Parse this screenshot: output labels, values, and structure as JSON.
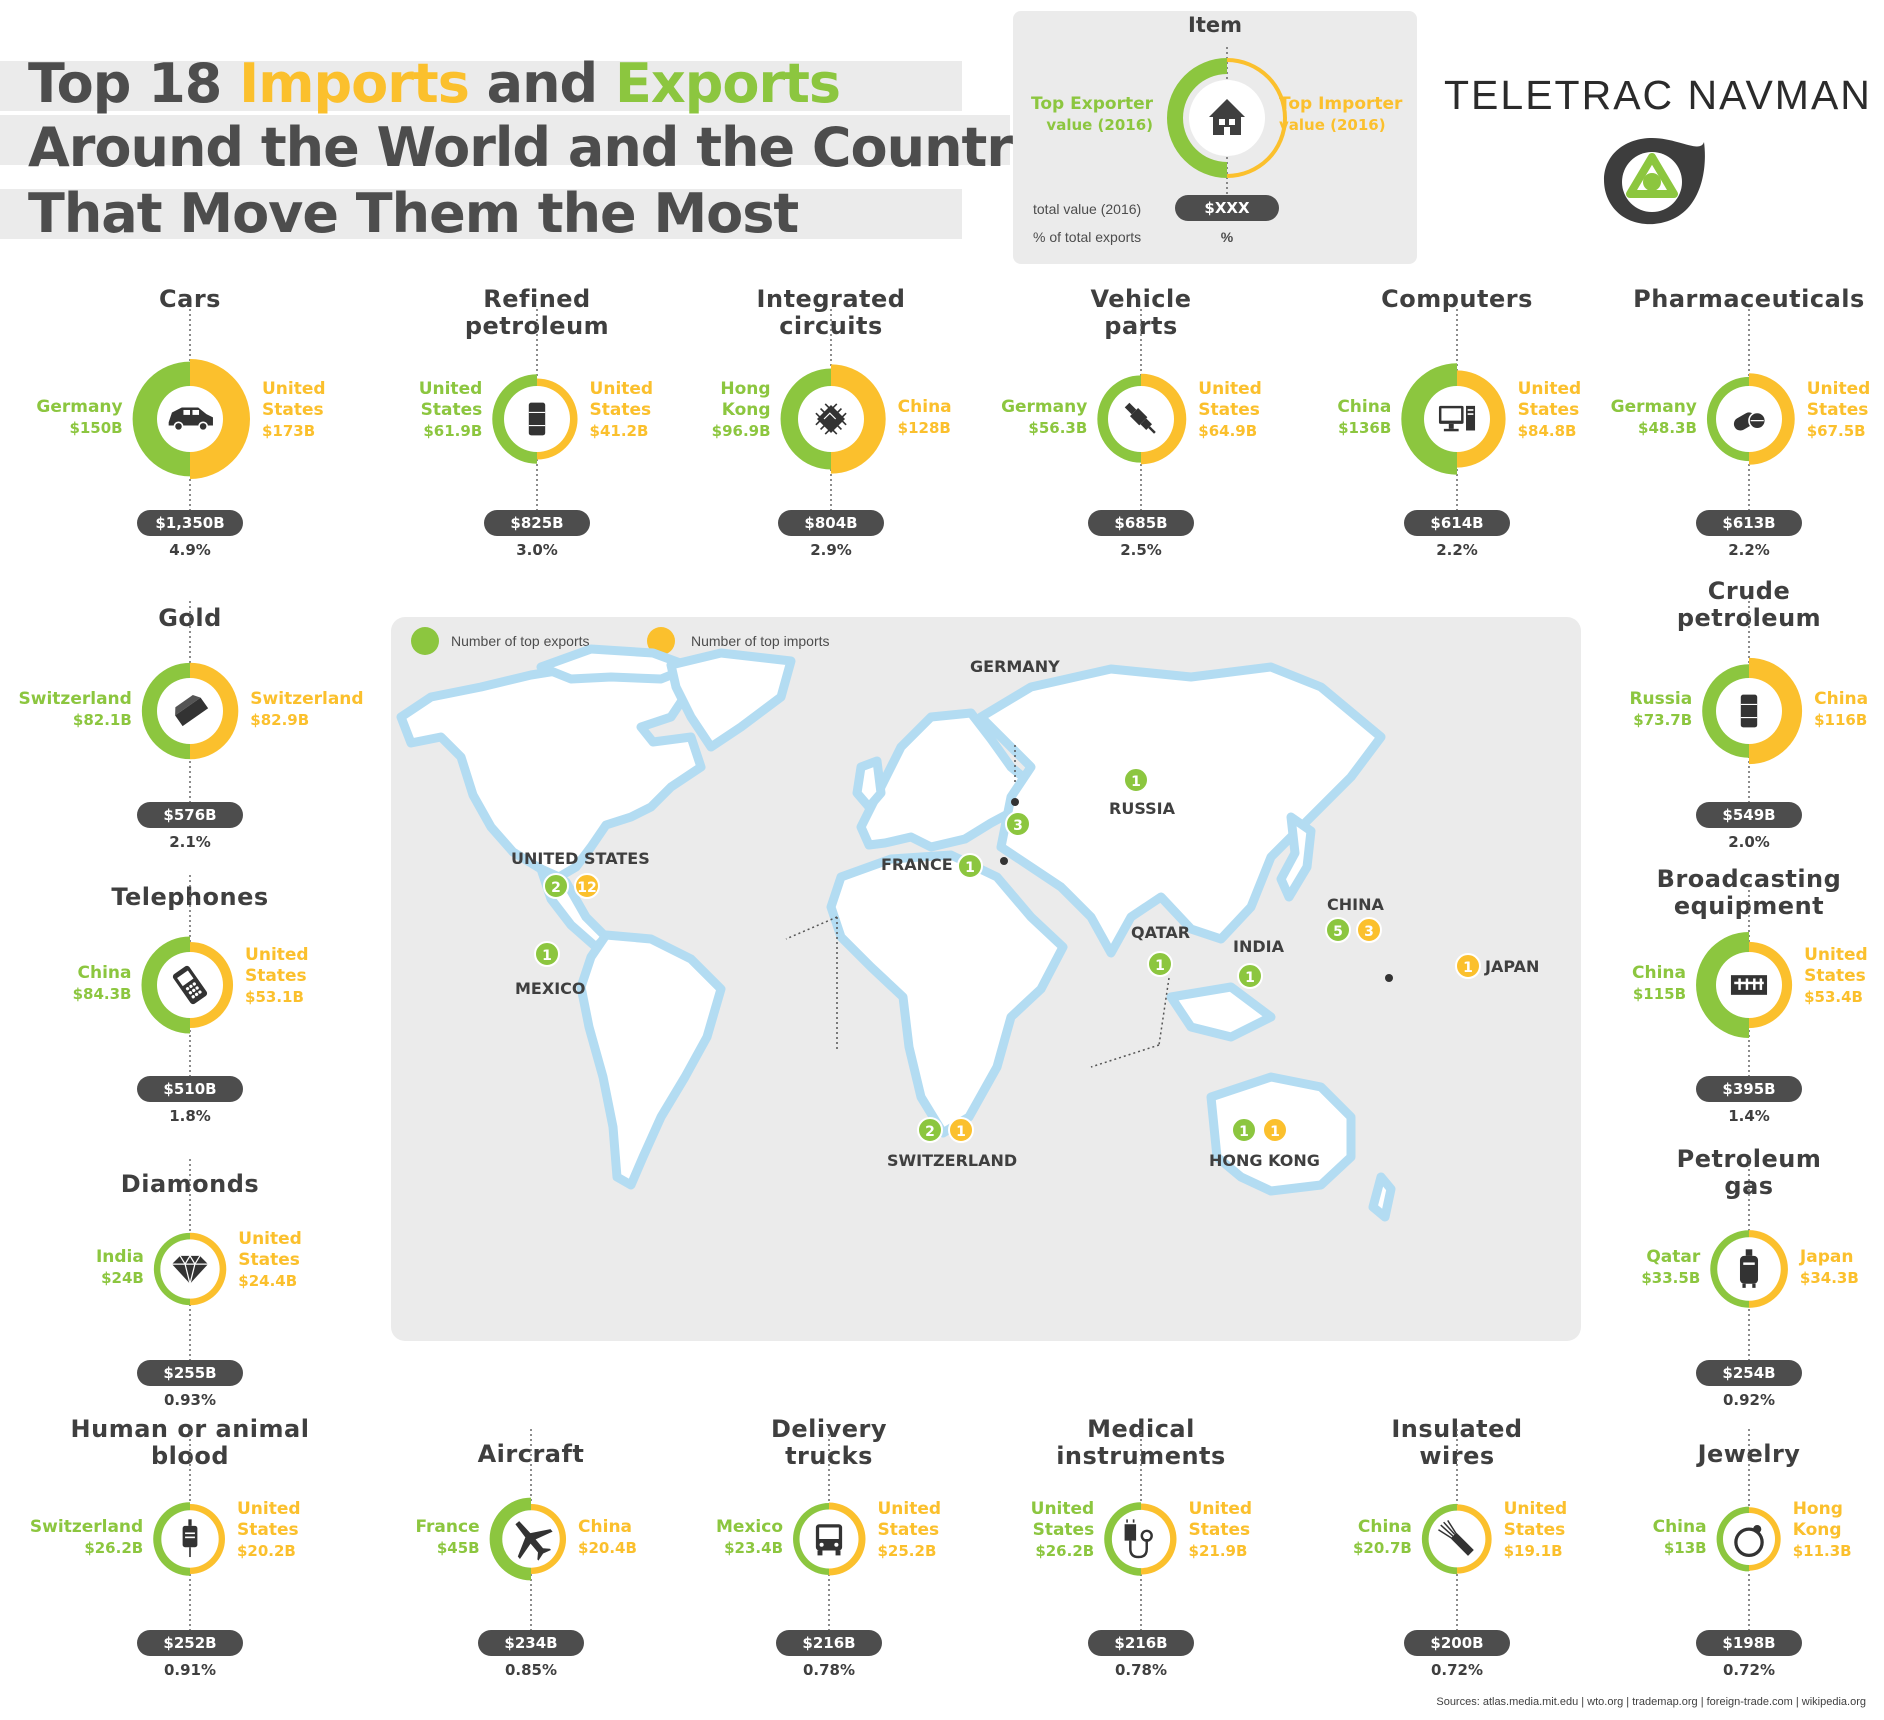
{
  "title": {
    "line1_a": "Top 18 ",
    "line1_imports": "Imports",
    "line1_and": " and ",
    "line1_exports": "Exports",
    "line2": "Around the World and the Countries",
    "line3": "That Move Them the Most"
  },
  "legend": {
    "item": "Item",
    "top_exporter_1": "Top Exporter",
    "top_exporter_2": "value (2016)",
    "top_importer_1": "Top Importer",
    "top_importer_2": "value (2016)",
    "total_label": "total value (2016)",
    "total_value": "$XXX",
    "pct_label": "% of total exports",
    "pct_value": "%"
  },
  "brand": {
    "name": "TELETRAC NAVMAN",
    "logo_icon": "navman-logo-icon"
  },
  "colors": {
    "exporter": "#8cc63f",
    "importer": "#fbc02d",
    "pill": "#4d4d4d",
    "map_bg": "#ebebeb",
    "coast": "#b3dcf2"
  },
  "items": [
    {
      "name": "Cars",
      "exporter": "Germany",
      "export_value": "$150B",
      "importer": "United States",
      "import_value": "$173B",
      "total": "$1,350B",
      "pct": "4.9%",
      "export_b": 150,
      "import_b": 173,
      "icon": "car-icon"
    },
    {
      "name": "Refined petroleum",
      "exporter": "United States",
      "export_value": "$61.9B",
      "importer": "United States",
      "import_value": "$41.2B",
      "total": "$825B",
      "pct": "3.0%",
      "export_b": 61.9,
      "import_b": 41.2,
      "icon": "barrel-icon"
    },
    {
      "name": "Integrated circuits",
      "exporter": "Hong Kong",
      "export_value": "$96.9B",
      "importer": "China",
      "import_value": "$128B",
      "total": "$804B",
      "pct": "2.9%",
      "export_b": 96.9,
      "import_b": 128,
      "icon": "chip-icon"
    },
    {
      "name": "Vehicle parts",
      "exporter": "Germany",
      "export_value": "$56.3B",
      "importer": "United States",
      "import_value": "$64.9B",
      "total": "$685B",
      "pct": "2.5%",
      "export_b": 56.3,
      "import_b": 64.9,
      "icon": "spark-plug-icon"
    },
    {
      "name": "Computers",
      "exporter": "China",
      "export_value": "$136B",
      "importer": "United States",
      "import_value": "$84.8B",
      "total": "$614B",
      "pct": "2.2%",
      "export_b": 136,
      "import_b": 84.8,
      "icon": "computer-icon"
    },
    {
      "name": "Pharmaceuticals",
      "exporter": "Germany",
      "export_value": "$48.3B",
      "importer": "United States",
      "import_value": "$67.5B",
      "total": "$613B",
      "pct": "2.2%",
      "export_b": 48.3,
      "import_b": 67.5,
      "icon": "pills-icon"
    },
    {
      "name": "Gold",
      "exporter": "Switzerland",
      "export_value": "$82.1B",
      "importer": "Switzerland",
      "import_value": "$82.9B",
      "total": "$576B",
      "pct": "2.1%",
      "export_b": 82.1,
      "import_b": 82.9,
      "icon": "gold-bar-icon"
    },
    {
      "name": "Crude petroleum",
      "exporter": "Russia",
      "export_value": "$73.7B",
      "importer": "China",
      "import_value": "$116B",
      "total": "$549B",
      "pct": "2.0%",
      "export_b": 73.7,
      "import_b": 116,
      "icon": "barrel-icon"
    },
    {
      "name": "Telephones",
      "exporter": "China",
      "export_value": "$84.3B",
      "importer": "United States",
      "import_value": "$53.1B",
      "total": "$510B",
      "pct": "1.8%",
      "export_b": 84.3,
      "import_b": 53.1,
      "icon": "phone-icon"
    },
    {
      "name": "Broadcasting equipment",
      "exporter": "China",
      "export_value": "$115B",
      "importer": "United States",
      "import_value": "$53.4B",
      "total": "$395B",
      "pct": "1.4%",
      "export_b": 115,
      "import_b": 53.4,
      "icon": "mixer-icon"
    },
    {
      "name": "Diamonds",
      "exporter": "India",
      "export_value": "$24B",
      "importer": "United States",
      "import_value": "$24.4B",
      "total": "$255B",
      "pct": "0.93%",
      "export_b": 24,
      "import_b": 24.4,
      "icon": "diamond-icon"
    },
    {
      "name": "Petroleum gas",
      "exporter": "Qatar",
      "export_value": "$33.5B",
      "importer": "Japan",
      "import_value": "$34.3B",
      "total": "$254B",
      "pct": "0.92%",
      "export_b": 33.5,
      "import_b": 34.3,
      "icon": "gas-tank-icon"
    },
    {
      "name": "Human or animal blood",
      "exporter": "Switzerland",
      "export_value": "$26.2B",
      "importer": "United States",
      "import_value": "$20.2B",
      "total": "$252B",
      "pct": "0.91%",
      "export_b": 26.2,
      "import_b": 20.2,
      "icon": "blood-bag-icon"
    },
    {
      "name": "Aircraft",
      "exporter": "France",
      "export_value": "$45B",
      "importer": "China",
      "import_value": "$20.4B",
      "total": "$234B",
      "pct": "0.85%",
      "export_b": 45,
      "import_b": 20.4,
      "icon": "airplane-icon"
    },
    {
      "name": "Delivery trucks",
      "exporter": "Mexico",
      "export_value": "$23.4B",
      "importer": "United States",
      "import_value": "$25.2B",
      "total": "$216B",
      "pct": "0.78%",
      "export_b": 23.4,
      "import_b": 25.2,
      "icon": "truck-icon"
    },
    {
      "name": "Medical instruments",
      "exporter": "United States",
      "export_value": "$26.2B",
      "importer": "United States",
      "import_value": "$21.9B",
      "total": "$216B",
      "pct": "0.78%",
      "export_b": 26.2,
      "import_b": 21.9,
      "icon": "stethoscope-icon"
    },
    {
      "name": "Insulated wires",
      "exporter": "China",
      "export_value": "$20.7B",
      "importer": "United States",
      "import_value": "$19.1B",
      "total": "$200B",
      "pct": "0.72%",
      "export_b": 20.7,
      "import_b": 19.1,
      "icon": "wire-icon"
    },
    {
      "name": "Jewelry",
      "exporter": "China",
      "export_value": "$13B",
      "importer": "Hong Kong",
      "import_value": "$11.3B",
      "total": "$198B",
      "pct": "0.72%",
      "export_b": 13,
      "import_b": 11.3,
      "icon": "ring-icon"
    }
  ],
  "map": {
    "legend_exports": "Number of top exports",
    "legend_imports": "Number of top imports",
    "countries": [
      {
        "name": "GERMANY",
        "exports": "3",
        "imports": ""
      },
      {
        "name": "RUSSIA",
        "exports": "1",
        "imports": ""
      },
      {
        "name": "UNITED STATES",
        "exports": "2",
        "imports": "12"
      },
      {
        "name": "FRANCE",
        "exports": "1",
        "imports": ""
      },
      {
        "name": "CHINA",
        "exports": "5",
        "imports": "3"
      },
      {
        "name": "QATAR",
        "exports": "1",
        "imports": ""
      },
      {
        "name": "INDIA",
        "exports": "1",
        "imports": ""
      },
      {
        "name": "JAPAN",
        "exports": "",
        "imports": "1"
      },
      {
        "name": "MEXICO",
        "exports": "1",
        "imports": ""
      },
      {
        "name": "SWITZERLAND",
        "exports": "2",
        "imports": "1"
      },
      {
        "name": "HONG KONG",
        "exports": "1",
        "imports": "1"
      }
    ]
  },
  "sources": "Sources: atlas.media.mit.edu  |  wto.org  |  trademap.org  |  foreign-trade.com  |  wikipedia.org"
}
